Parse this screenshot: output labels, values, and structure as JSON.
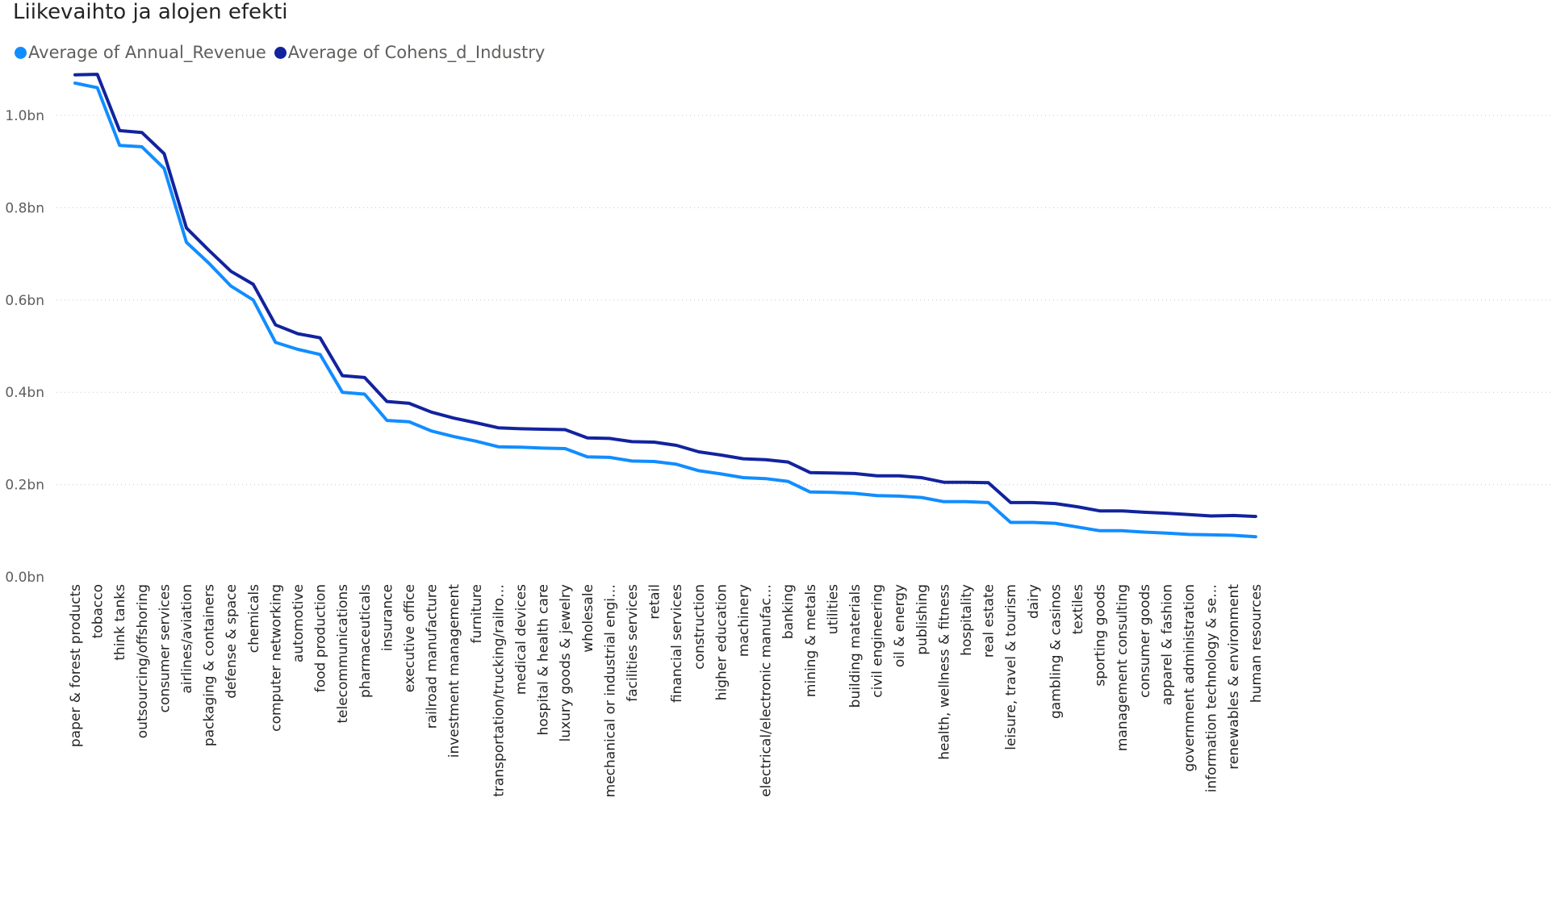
{
  "chart_data": {
    "type": "line",
    "title": "Liikevaihto ja alojen efekti",
    "xlabel": "",
    "ylabel": "",
    "ylim": [
      0,
      1.15
    ],
    "yticks": [
      {
        "value": 0.0,
        "label": "0.0bn"
      },
      {
        "value": 0.2,
        "label": "0.2bn"
      },
      {
        "value": 0.4,
        "label": "0.4bn"
      },
      {
        "value": 0.6,
        "label": "0.6bn"
      },
      {
        "value": 0.8,
        "label": "0.8bn"
      },
      {
        "value": 1.0,
        "label": "1.0bn"
      }
    ],
    "grid": true,
    "legend_position": "top-left",
    "categories": [
      "paper & forest products",
      "tobacco",
      "think tanks",
      "outsourcing/offshoring",
      "consumer services",
      "airlines/aviation",
      "packaging & containers",
      "defense & space",
      "chemicals",
      "computer networking",
      "automotive",
      "food production",
      "telecommunications",
      "pharmaceuticals",
      "insurance",
      "executive office",
      "railroad manufacture",
      "investment management",
      "furniture",
      "transportation/trucking/railro…",
      "medical devices",
      "hospital & health care",
      "luxury goods & jewelry",
      "wholesale",
      "mechanical or industrial engi…",
      "facilities services",
      "retail",
      "financial services",
      "construction",
      "higher education",
      "machinery",
      "electrical/electronic manufac…",
      "banking",
      "mining & metals",
      "utilities",
      "building materials",
      "civil engineering",
      "oil & energy",
      "publishing",
      "health, wellness & fitness",
      "hospitality",
      "real estate",
      "leisure, travel & tourism",
      "dairy",
      "gambling & casinos",
      "textiles",
      "sporting goods",
      "management consulting",
      "consumer goods",
      "apparel & fashion",
      "government administration",
      "information technology & se…",
      "renewables & environment",
      "human resources"
    ],
    "series": [
      {
        "name": "Average of Annual_Revenue",
        "color": "#118DFF",
        "values": [
          1.07,
          1.06,
          0.935,
          0.932,
          0.885,
          0.725,
          0.68,
          0.63,
          0.6,
          0.508,
          0.493,
          0.482,
          0.4,
          0.396,
          0.339,
          0.336,
          0.316,
          0.304,
          0.294,
          0.282,
          0.281,
          0.279,
          0.278,
          0.26,
          0.259,
          0.251,
          0.25,
          0.244,
          0.23,
          0.223,
          0.215,
          0.213,
          0.207,
          0.184,
          0.183,
          0.181,
          0.176,
          0.175,
          0.172,
          0.163,
          0.163,
          0.161,
          0.118,
          0.118,
          0.116,
          0.108,
          0.1,
          0.1,
          0.097,
          0.095,
          0.092,
          0.091,
          0.09,
          0.087
        ]
      },
      {
        "name": "Average of Cohens_d_Industry",
        "color": "#12239E",
        "values": [
          1.088,
          1.089,
          0.967,
          0.963,
          0.917,
          0.756,
          0.708,
          0.662,
          0.634,
          0.546,
          0.527,
          0.518,
          0.436,
          0.432,
          0.38,
          0.376,
          0.357,
          0.344,
          0.334,
          0.323,
          0.321,
          0.32,
          0.319,
          0.301,
          0.3,
          0.293,
          0.292,
          0.285,
          0.271,
          0.264,
          0.256,
          0.254,
          0.249,
          0.226,
          0.225,
          0.224,
          0.219,
          0.219,
          0.215,
          0.205,
          0.205,
          0.204,
          0.161,
          0.161,
          0.159,
          0.152,
          0.143,
          0.143,
          0.14,
          0.138,
          0.135,
          0.132,
          0.133,
          0.131
        ]
      }
    ]
  }
}
